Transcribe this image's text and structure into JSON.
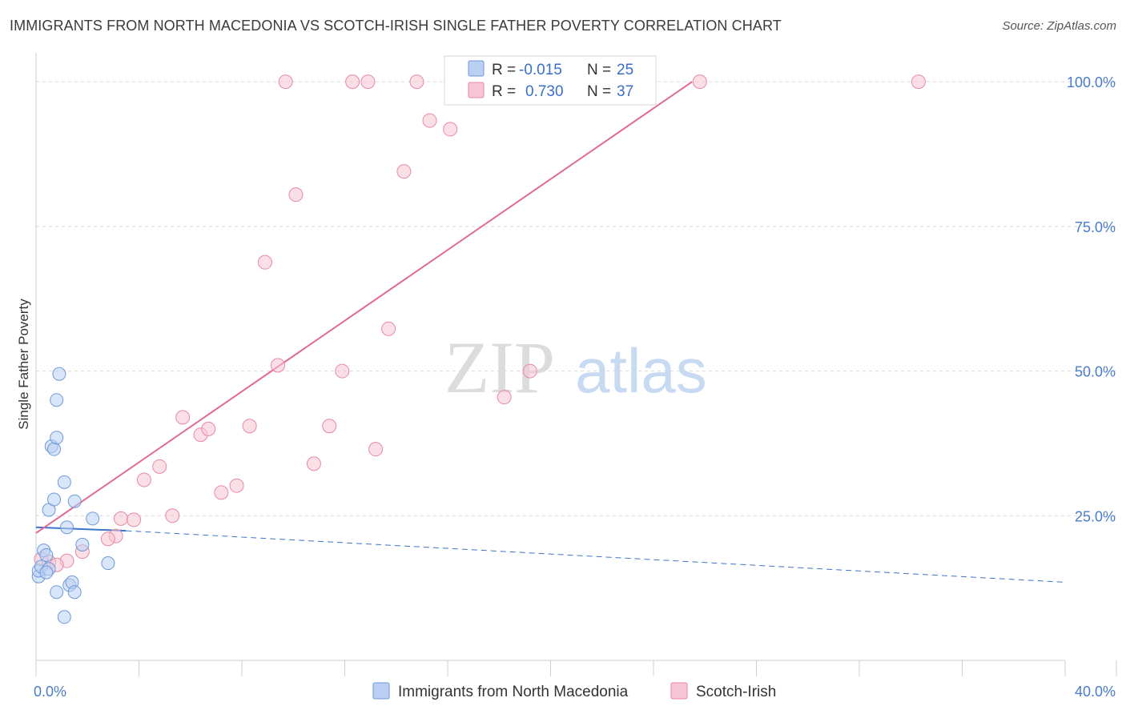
{
  "title": "IMMIGRANTS FROM NORTH MACEDONIA VS SCOTCH-IRISH SINGLE FATHER POVERTY CORRELATION CHART",
  "source": "Source: ZipAtlas.com",
  "watermark": {
    "zip": "ZIP",
    "atlas": "atlas"
  },
  "colors": {
    "blue_fill": "#b9d0f3",
    "blue_stroke": "#6f99d8",
    "blue_line": "#3d74c9",
    "pink_fill": "#f8c5d4",
    "pink_stroke": "#e58aa6",
    "pink_line": "#e06a92",
    "grid": "#d9d9d9",
    "tick_text": "#4a7cc9"
  },
  "chart_data": {
    "type": "scatter",
    "title": "IMMIGRANTS FROM NORTH MACEDONIA VS SCOTCH-IRISH SINGLE FATHER POVERTY CORRELATION CHART",
    "xlabel": "",
    "ylabel": "Single Father Poverty",
    "xlim": [
      0,
      40
    ],
    "ylim": [
      0,
      105
    ],
    "x_tick_labels": [
      {
        "value": 0,
        "label": "0.0%"
      },
      {
        "value": 40,
        "label": "40.0%"
      }
    ],
    "y_tick_labels": [
      {
        "value": 25,
        "label": "25.0%"
      },
      {
        "value": 50,
        "label": "50.0%"
      },
      {
        "value": 75,
        "label": "75.0%"
      },
      {
        "value": 100,
        "label": "100.0%"
      }
    ],
    "series": [
      {
        "name": "Immigrants from North Macedonia",
        "color": "blue",
        "R": "-0.015",
        "N": "25",
        "r_label": "R =",
        "n_label": "N =",
        "points": [
          [
            0.1,
            14.5
          ],
          [
            0.1,
            15.5
          ],
          [
            0.2,
            16.2
          ],
          [
            0.3,
            19.0
          ],
          [
            0.4,
            18.2
          ],
          [
            0.5,
            26.0
          ],
          [
            0.5,
            15.8
          ],
          [
            0.6,
            37.0
          ],
          [
            0.7,
            36.5
          ],
          [
            0.7,
            27.8
          ],
          [
            0.8,
            45.0
          ],
          [
            0.8,
            38.5
          ],
          [
            0.9,
            49.5
          ],
          [
            0.8,
            11.8
          ],
          [
            1.1,
            30.8
          ],
          [
            1.2,
            23.0
          ],
          [
            1.1,
            7.5
          ],
          [
            1.3,
            13.0
          ],
          [
            1.4,
            13.5
          ],
          [
            1.5,
            11.8
          ],
          [
            1.5,
            27.5
          ],
          [
            1.8,
            20.0
          ],
          [
            2.2,
            24.5
          ],
          [
            2.8,
            16.8
          ],
          [
            0.4,
            15.2
          ]
        ],
        "trend": {
          "x": [
            0,
            3.5
          ],
          "y": [
            23.0,
            22.4
          ]
        },
        "trend_dashed": {
          "x": [
            3.5,
            40
          ],
          "y": [
            22.4,
            13.5
          ]
        }
      },
      {
        "name": "Scotch-Irish",
        "color": "pink",
        "R": "0.730",
        "N": "37",
        "r_label": "R =",
        "n_label": "N =",
        "points": [
          [
            0.2,
            17.5
          ],
          [
            0.5,
            17.0
          ],
          [
            1.2,
            17.2
          ],
          [
            1.8,
            18.8
          ],
          [
            3.1,
            21.5
          ],
          [
            2.8,
            21.0
          ],
          [
            3.3,
            24.5
          ],
          [
            3.8,
            24.3
          ],
          [
            4.2,
            31.2
          ],
          [
            4.8,
            33.5
          ],
          [
            5.3,
            25.0
          ],
          [
            5.7,
            42.0
          ],
          [
            6.4,
            39.0
          ],
          [
            6.7,
            40.0
          ],
          [
            7.2,
            29.0
          ],
          [
            7.8,
            30.2
          ],
          [
            8.3,
            40.5
          ],
          [
            8.9,
            68.8
          ],
          [
            9.4,
            51.0
          ],
          [
            9.7,
            100.0
          ],
          [
            10.1,
            80.5
          ],
          [
            10.8,
            34.0
          ],
          [
            11.4,
            40.5
          ],
          [
            11.9,
            50.0
          ],
          [
            12.3,
            100.0
          ],
          [
            12.9,
            100.0
          ],
          [
            13.2,
            36.5
          ],
          [
            13.7,
            57.3
          ],
          [
            14.3,
            84.5
          ],
          [
            14.8,
            100.0
          ],
          [
            15.3,
            93.3
          ],
          [
            16.1,
            91.8
          ],
          [
            18.2,
            45.5
          ],
          [
            19.2,
            50.0
          ],
          [
            25.8,
            100.0
          ],
          [
            34.3,
            100.0
          ],
          [
            0.8,
            16.5
          ]
        ],
        "trend": {
          "x": [
            0,
            25.5
          ],
          "y": [
            22.0,
            100.0
          ]
        }
      }
    ]
  }
}
